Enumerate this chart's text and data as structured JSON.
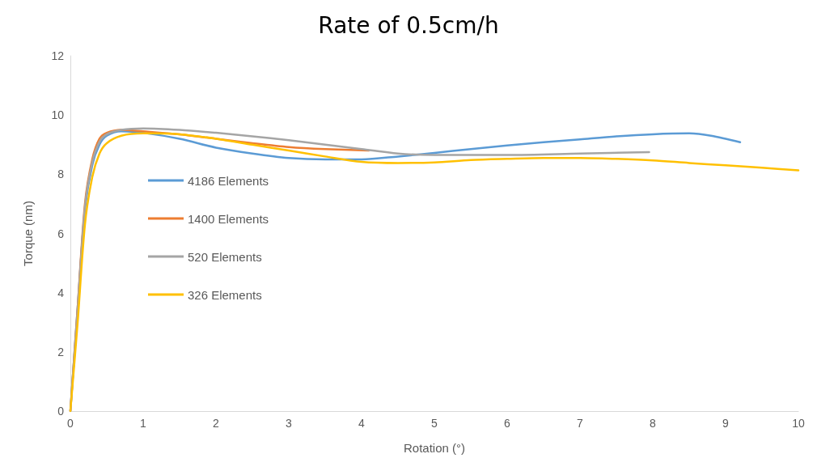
{
  "chart_data": {
    "type": "line",
    "title": "Rate of 0.5cm/h",
    "xlabel": "Rotation (°)",
    "ylabel": "Torque (nm)",
    "xlim": [
      0,
      10
    ],
    "xticks": [
      0,
      1,
      2,
      3,
      4,
      5,
      6,
      7,
      8,
      9,
      10
    ],
    "ylim": [
      0,
      12
    ],
    "yticks": [
      0,
      2,
      4,
      6,
      8,
      10,
      12
    ],
    "grid": false,
    "legend": "left",
    "marker": "none",
    "line_style": "solid",
    "series": [
      {
        "name": "4186 Elements",
        "color": "#5b9bd5",
        "x": [
          0,
          0.1,
          0.2,
          0.3,
          0.4,
          0.5,
          0.7,
          1,
          1.5,
          2,
          2.5,
          3,
          3.5,
          4,
          4.5,
          5,
          5.5,
          6,
          6.5,
          7,
          7.5,
          8,
          8.5,
          8.8,
          9.2
        ],
        "values": [
          0,
          3.5,
          6.8,
          8.3,
          9,
          9.3,
          9.45,
          9.4,
          9.2,
          8.9,
          8.7,
          8.55,
          8.5,
          8.5,
          8.6,
          8.72,
          8.85,
          8.97,
          9.08,
          9.18,
          9.28,
          9.35,
          9.38,
          9.3,
          9.08
        ]
      },
      {
        "name": "1400 Elements",
        "color": "#ed7d31",
        "x": [
          0,
          0.1,
          0.2,
          0.3,
          0.4,
          0.5,
          0.7,
          1,
          1.5,
          2,
          2.5,
          3,
          3.5,
          4.1
        ],
        "values": [
          0,
          3.5,
          7,
          8.5,
          9.2,
          9.4,
          9.5,
          9.45,
          9.35,
          9.2,
          9.05,
          8.92,
          8.85,
          8.8
        ]
      },
      {
        "name": "520 Elements",
        "color": "#a5a5a5",
        "x": [
          0,
          0.1,
          0.2,
          0.3,
          0.4,
          0.5,
          0.7,
          1,
          1.5,
          2,
          2.5,
          3,
          3.5,
          4,
          4.5,
          5,
          6,
          7,
          7.95
        ],
        "values": [
          0,
          3.4,
          6.9,
          8.4,
          9.1,
          9.35,
          9.5,
          9.55,
          9.5,
          9.4,
          9.28,
          9.15,
          9,
          8.85,
          8.7,
          8.65,
          8.65,
          8.7,
          8.75
        ]
      },
      {
        "name": "326 Elements",
        "color": "#ffc000",
        "x": [
          0,
          0.1,
          0.2,
          0.3,
          0.4,
          0.5,
          0.7,
          1,
          1.5,
          2,
          2.5,
          3,
          3.5,
          4,
          4.5,
          5,
          5.5,
          6,
          6.5,
          7,
          7.5,
          8,
          8.5,
          9,
          9.5,
          10
        ],
        "values": [
          0,
          3,
          6.3,
          7.9,
          8.7,
          9.05,
          9.3,
          9.38,
          9.35,
          9.2,
          9,
          8.8,
          8.6,
          8.42,
          8.38,
          8.4,
          8.48,
          8.52,
          8.55,
          8.55,
          8.52,
          8.47,
          8.38,
          8.3,
          8.22,
          8.13
        ]
      }
    ]
  }
}
